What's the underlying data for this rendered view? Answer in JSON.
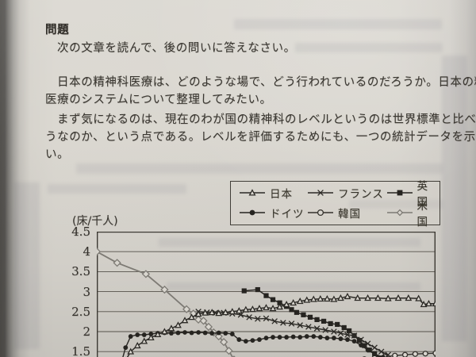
{
  "page": {
    "heading": "問題",
    "instruction": "次の文章を読んで、後の問いに答えなさい。",
    "paragraph1_line1": "日本の精神科医療は、どのような場で、どう行われているのだろうか。日本の精神",
    "paragraph1_line2": "医療のシステムについて整理してみたい。",
    "paragraph2_line1": "まず気になるのは、現在のわが国の精神科のレベルというのは世界標準と比べてど",
    "paragraph2_line2": "うなのか、という点である。レベルを評価するためにも、一つの統計データを示した",
    "paragraph2_line3": "い。"
  },
  "chart_data": {
    "type": "line",
    "title": "",
    "xlabel": "",
    "ylabel": "(床/千人)",
    "yticks": [
      4.5,
      4,
      3.5,
      3,
      2.5,
      2,
      1.5
    ],
    "ylim_visible": [
      1.35,
      4.5
    ],
    "x_unit": "percent of plot width (x-axis labels cut off at bottom of photo)",
    "grid": true,
    "grid_color": "#55514a",
    "axis_color": "#3c3933",
    "paper_color": "#d9d6cf",
    "legend_position": "top-right box above plot",
    "series": [
      {
        "key": "japan",
        "name": "日本",
        "marker": "open-triangle",
        "color": "#2c2a26",
        "width": 1.5,
        "msize": 3.3,
        "x": [
          8.5,
          10,
          12,
          14,
          16,
          18,
          20,
          22,
          24,
          26,
          28,
          30,
          32,
          34,
          36,
          38,
          40,
          42,
          44,
          46,
          48,
          50,
          52,
          54,
          56,
          58,
          60,
          62,
          64,
          66,
          68,
          70,
          72,
          74,
          77,
          80,
          83,
          86,
          89,
          92,
          95,
          96.5,
          98,
          100
        ],
        "y": [
          1.28,
          1.5,
          1.65,
          1.76,
          1.85,
          1.93,
          2.0,
          2.08,
          2.16,
          2.28,
          2.36,
          2.44,
          2.47,
          2.48,
          2.46,
          2.48,
          2.5,
          2.52,
          2.55,
          2.56,
          2.58,
          2.6,
          2.58,
          2.62,
          2.68,
          2.72,
          2.76,
          2.79,
          2.81,
          2.82,
          2.82,
          2.81,
          2.84,
          2.88,
          2.84,
          2.84,
          2.84,
          2.83,
          2.84,
          2.84,
          2.83,
          2.68,
          2.7,
          2.7
        ]
      },
      {
        "key": "france",
        "name": "フランス",
        "marker": "x",
        "color": "#2c2a26",
        "width": 1.4,
        "msize": 3.3,
        "x": [
          30,
          32.5,
          35,
          37.5,
          40,
          42.5,
          45,
          47.5,
          50,
          52.5,
          55,
          57.5,
          60,
          62.5,
          65,
          67.5,
          70,
          72,
          74,
          76,
          78,
          80,
          82,
          84,
          86
        ],
        "y": [
          2.5,
          2.48,
          2.47,
          2.47,
          2.45,
          2.42,
          2.36,
          2.32,
          2.33,
          2.26,
          2.22,
          2.2,
          2.16,
          2.12,
          2.08,
          2.04,
          2.0,
          1.96,
          1.92,
          1.9,
          1.8,
          1.7,
          1.6,
          1.5,
          1.42
        ]
      },
      {
        "key": "uk",
        "name": "英国",
        "marker": "filled-square",
        "color": "#262420",
        "width": 1.5,
        "msize": 3.1,
        "x": [
          43.5,
          47.5,
          50,
          52,
          54,
          56,
          57.5,
          59,
          61,
          63,
          65,
          67,
          69,
          71,
          73,
          74.5,
          76,
          77.5,
          79,
          80.5,
          82,
          83.5
        ],
        "y": [
          3.02,
          3.05,
          2.9,
          2.8,
          2.72,
          2.63,
          2.55,
          2.48,
          2.42,
          2.36,
          2.3,
          2.26,
          2.2,
          2.18,
          2.1,
          2.02,
          1.9,
          1.78,
          1.65,
          1.54,
          1.45,
          1.34
        ]
      },
      {
        "key": "germany",
        "name": "ドイツ",
        "marker": "filled-circle",
        "color": "#262420",
        "width": 1.4,
        "msize": 2.9,
        "x": [
          7.5,
          8.5,
          10,
          12,
          14,
          16,
          18,
          20,
          22,
          24,
          26,
          28,
          30,
          32,
          34,
          36,
          38,
          40,
          42,
          44,
          46,
          48,
          50,
          52,
          54,
          56,
          58,
          60,
          62,
          64,
          66,
          68,
          70,
          72,
          74,
          76,
          78,
          80,
          82,
          84.5
        ],
        "y": [
          1.3,
          1.6,
          1.88,
          1.92,
          1.92,
          1.94,
          1.96,
          1.97,
          1.96,
          1.97,
          1.98,
          1.97,
          1.98,
          1.97,
          1.96,
          1.97,
          1.96,
          1.94,
          1.8,
          1.76,
          1.78,
          1.8,
          1.84,
          1.86,
          1.86,
          1.86,
          1.87,
          1.86,
          1.88,
          1.88,
          1.86,
          1.84,
          1.84,
          1.82,
          1.8,
          1.76,
          1.66,
          1.54,
          1.44,
          1.36
        ]
      },
      {
        "key": "korea",
        "name": "韓国",
        "marker": "open-circle",
        "color": "#34312c",
        "width": 1.3,
        "msize": 3.0,
        "x": [
          76,
          79,
          82,
          85,
          88,
          91,
          94,
          97,
          100
        ],
        "y": [
          1.28,
          1.31,
          1.34,
          1.37,
          1.4,
          1.42,
          1.44,
          1.45,
          1.46
        ]
      },
      {
        "key": "usa",
        "name": "米国",
        "marker": "open-diamond",
        "color": "#7d7a74",
        "width": 1.8,
        "msize": 4.2,
        "x": [
          0,
          6,
          14.5,
          20,
          26.5,
          28.5,
          30,
          31.5,
          33,
          34.5,
          36,
          37.5,
          39,
          40.5
        ],
        "y": [
          4.0,
          3.72,
          3.44,
          3.05,
          2.56,
          2.45,
          2.3,
          2.27,
          2.12,
          1.98,
          1.88,
          1.74,
          1.52,
          1.3
        ]
      }
    ]
  }
}
